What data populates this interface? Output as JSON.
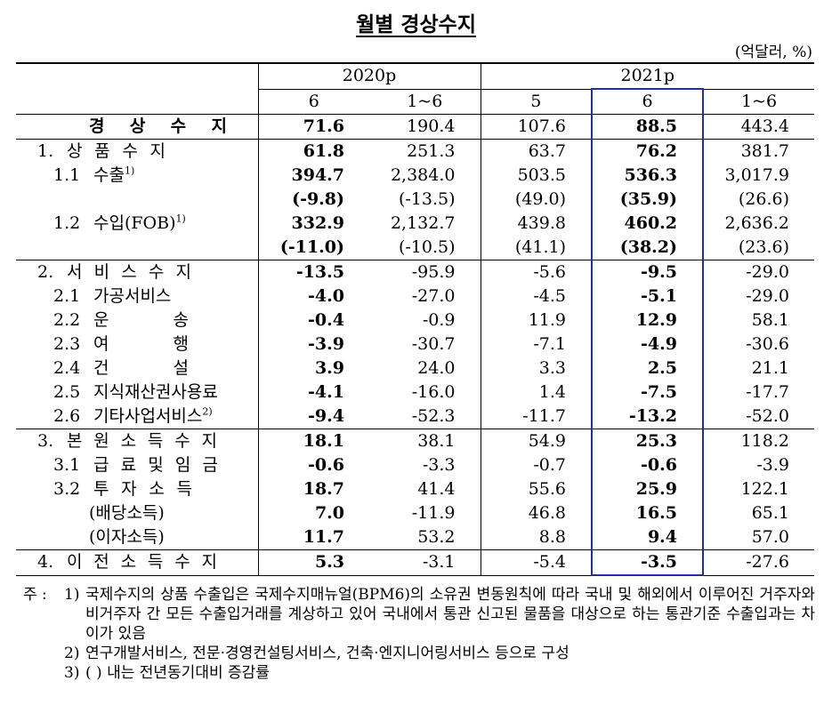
{
  "title": "월별 경상수지",
  "unit": "(억달러, %)",
  "table": {
    "corner": "",
    "groups": [
      "2020p",
      "2021p"
    ],
    "columns": [
      "6",
      "1~6",
      "5",
      "6",
      "1~6"
    ],
    "rows": [
      {
        "name": "경 상 수 지",
        "values": [
          "71.6",
          "190.4",
          "107.6",
          "88.5",
          "443.4"
        ]
      },
      {
        "num": "1.",
        "name": "상 품 수 지",
        "values": [
          "61.8",
          "251.3",
          "63.7",
          "76.2",
          "381.7"
        ]
      },
      {
        "num": "1.1",
        "name": "수출",
        "note": "1)",
        "values": [
          "394.7",
          "2,384.0",
          "503.5",
          "536.3",
          "3,017.9"
        ]
      },
      {
        "values": [
          "(-9.8)",
          "(-13.5)",
          "(49.0)",
          "(35.9)",
          "(26.6)"
        ]
      },
      {
        "num": "1.2",
        "name": "수입(FOB)",
        "note": "1)",
        "values": [
          "332.9",
          "2,132.7",
          "439.8",
          "460.2",
          "2,636.2"
        ]
      },
      {
        "values": [
          "(-11.0)",
          "(-10.5)",
          "(41.1)",
          "(38.2)",
          "(23.6)"
        ]
      },
      {
        "num": "2.",
        "name": "서 비 스 수 지",
        "values": [
          "-13.5",
          "-95.9",
          "-5.6",
          "-9.5",
          "-29.0"
        ]
      },
      {
        "num": "2.1",
        "name": "가공서비스",
        "values": [
          "-4.0",
          "-27.0",
          "-4.5",
          "-5.1",
          "-29.0"
        ]
      },
      {
        "num": "2.2",
        "name": "운 송",
        "values": [
          "-0.4",
          "-0.9",
          "11.9",
          "12.9",
          "58.1"
        ]
      },
      {
        "num": "2.3",
        "name": "여 행",
        "values": [
          "-3.9",
          "-30.7",
          "-7.1",
          "-4.9",
          "-30.6"
        ]
      },
      {
        "num": "2.4",
        "name": "건 설",
        "values": [
          "3.9",
          "24.0",
          "3.3",
          "2.5",
          "21.1"
        ]
      },
      {
        "num": "2.5",
        "name": "지식재산권사용료",
        "values": [
          "-4.1",
          "-16.0",
          "1.4",
          "-7.5",
          "-17.7"
        ]
      },
      {
        "num": "2.6",
        "name": "기타사업서비스",
        "note": "2)",
        "values": [
          "-9.4",
          "-52.3",
          "-11.7",
          "-13.2",
          "-52.0"
        ]
      },
      {
        "num": "3.",
        "name": "본 원 소 득 수 지",
        "values": [
          "18.1",
          "38.1",
          "54.9",
          "25.3",
          "118.2"
        ]
      },
      {
        "num": "3.1",
        "name": "급 료 및 임 금",
        "values": [
          "-0.6",
          "-3.3",
          "-0.7",
          "-0.6",
          "-3.9"
        ]
      },
      {
        "num": "3.2",
        "name": "투 자 소 득",
        "values": [
          "18.7",
          "41.4",
          "55.6",
          "25.9",
          "122.1"
        ]
      },
      {
        "name": "(배당소득)",
        "values": [
          "7.0",
          "-11.9",
          "46.8",
          "16.5",
          "65.1"
        ]
      },
      {
        "name": "(이자소득)",
        "values": [
          "11.7",
          "53.2",
          "8.8",
          "9.4",
          "57.0"
        ]
      },
      {
        "num": "4.",
        "name": "이 전 소 득 수 지",
        "values": [
          "5.3",
          "-3.1",
          "-5.4",
          "-3.5",
          "-27.6"
        ]
      }
    ]
  },
  "notes": {
    "label": "주 :",
    "items": [
      {
        "num": "1)",
        "text": "국제수지의 상품 수출입은 국제수지매뉴얼(BPM6)의 소유권 변동원칙에 따라 국내 및 해외에서 이루어진 거주자와 비거주자 간 모든 수출입거래를 계상하고 있어 국내에서 통관 신고된 물품을 대상으로 하는 통관기준 수출입과는 차이가 있음"
      },
      {
        "num": "2)",
        "text": "연구개발서비스, 전문·경영컨설팅서비스, 건축·엔지니어링서비스 등으로 구성"
      },
      {
        "num": "3)",
        "text": "(  ) 내는 전년동기대비 증감률"
      }
    ]
  }
}
